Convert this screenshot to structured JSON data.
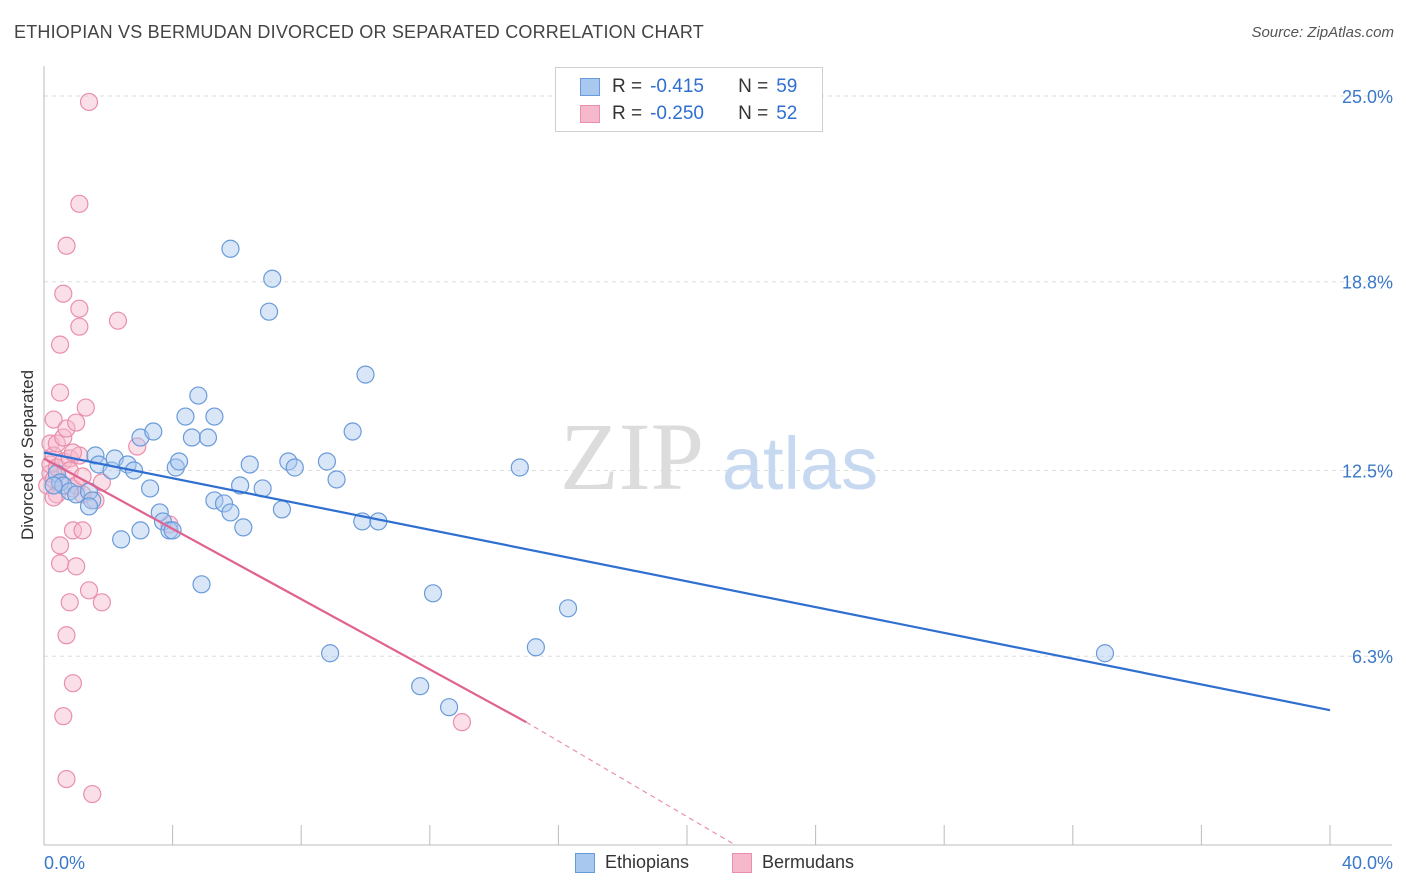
{
  "title": "ETHIOPIAN VS BERMUDAN DIVORCED OR SEPARATED CORRELATION CHART",
  "source": "Source: ZipAtlas.com",
  "watermark": {
    "zip": "ZIP",
    "atlas": "atlas"
  },
  "legend_top": [
    {
      "r_label": "R =",
      "r_value": "-0.415",
      "n_label": "N =",
      "n_value": "59"
    },
    {
      "r_label": "R =",
      "r_value": "-0.250",
      "n_label": "N =",
      "n_value": "52"
    }
  ],
  "legend_bottom": [
    {
      "label": "Ethiopians"
    },
    {
      "label": "Bermudans"
    }
  ],
  "colors": {
    "ethiopian_fill": "#a9c8f0",
    "ethiopian_stroke": "#6a9bd9",
    "ethiopian_line": "#2f6fd0",
    "bermudan_fill": "#f6b9cc",
    "bermudan_stroke": "#e98fad",
    "bermudan_line": "#e0628f",
    "axis_text": "#3a78c9",
    "grid": "#dddddd"
  },
  "chart_data": {
    "type": "scatter",
    "title": "ETHIOPIAN VS BERMUDAN DIVORCED OR SEPARATED CORRELATION CHART",
    "xlabel": "",
    "ylabel": "Divorced or Separated",
    "xlim": [
      0,
      40
    ],
    "ylim": [
      0,
      25.8
    ],
    "x_tick_labels": [
      "0.0%",
      "40.0%"
    ],
    "y_ticks": [
      6.3,
      12.5,
      18.8,
      25.0
    ],
    "y_tick_labels": [
      "6.3%",
      "12.5%",
      "18.8%",
      "25.0%"
    ],
    "grid": true,
    "legend_position": "top-center",
    "series": [
      {
        "name": "Ethiopians",
        "points": [
          [
            0.4,
            12.4
          ],
          [
            0.5,
            12.1
          ],
          [
            0.6,
            12.0
          ],
          [
            0.3,
            12.0
          ],
          [
            0.8,
            11.8
          ],
          [
            1.0,
            11.7
          ],
          [
            1.4,
            11.8
          ],
          [
            1.5,
            11.5
          ],
          [
            1.6,
            13.0
          ],
          [
            1.7,
            12.7
          ],
          [
            2.1,
            12.5
          ],
          [
            2.2,
            12.9
          ],
          [
            2.6,
            12.7
          ],
          [
            2.8,
            12.5
          ],
          [
            3.0,
            13.6
          ],
          [
            3.4,
            13.8
          ],
          [
            3.3,
            11.9
          ],
          [
            3.6,
            11.1
          ],
          [
            3.7,
            10.8
          ],
          [
            3.9,
            10.5
          ],
          [
            4.0,
            10.5
          ],
          [
            4.1,
            12.6
          ],
          [
            4.2,
            12.8
          ],
          [
            4.4,
            14.3
          ],
          [
            4.6,
            13.6
          ],
          [
            4.8,
            15.0
          ],
          [
            5.1,
            13.6
          ],
          [
            5.3,
            14.3
          ],
          [
            5.3,
            11.5
          ],
          [
            5.6,
            11.4
          ],
          [
            5.8,
            11.1
          ],
          [
            5.8,
            19.9
          ],
          [
            6.1,
            12.0
          ],
          [
            6.2,
            10.6
          ],
          [
            6.4,
            12.7
          ],
          [
            6.8,
            11.9
          ],
          [
            7.0,
            17.8
          ],
          [
            7.1,
            18.9
          ],
          [
            7.4,
            11.2
          ],
          [
            7.6,
            12.8
          ],
          [
            7.8,
            12.6
          ],
          [
            8.8,
            12.8
          ],
          [
            8.9,
            6.4
          ],
          [
            9.1,
            12.2
          ],
          [
            9.6,
            13.8
          ],
          [
            9.9,
            10.8
          ],
          [
            10.0,
            15.7
          ],
          [
            10.4,
            10.8
          ],
          [
            11.7,
            5.3
          ],
          [
            12.1,
            8.4
          ],
          [
            12.6,
            4.6
          ],
          [
            14.8,
            12.6
          ],
          [
            15.3,
            6.6
          ],
          [
            16.3,
            7.9
          ],
          [
            33.0,
            6.4
          ],
          [
            2.4,
            10.2
          ],
          [
            3.0,
            10.5
          ],
          [
            4.9,
            8.7
          ],
          [
            1.4,
            11.3
          ]
        ],
        "trend": {
          "x0": 0,
          "y0": 13.1,
          "x1": 40,
          "y1": 4.5
        }
      },
      {
        "name": "Bermudans",
        "points": [
          [
            0.1,
            12.0
          ],
          [
            0.2,
            12.4
          ],
          [
            0.2,
            12.7
          ],
          [
            0.2,
            13.4
          ],
          [
            0.3,
            12.2
          ],
          [
            0.3,
            13.0
          ],
          [
            0.3,
            14.2
          ],
          [
            0.4,
            11.7
          ],
          [
            0.4,
            12.6
          ],
          [
            0.4,
            13.4
          ],
          [
            0.5,
            10.0
          ],
          [
            0.5,
            15.1
          ],
          [
            0.5,
            16.7
          ],
          [
            0.5,
            9.4
          ],
          [
            0.6,
            12.8
          ],
          [
            0.6,
            13.6
          ],
          [
            0.6,
            18.4
          ],
          [
            0.6,
            4.3
          ],
          [
            0.7,
            7.0
          ],
          [
            0.7,
            13.9
          ],
          [
            0.8,
            12.9
          ],
          [
            0.8,
            12.5
          ],
          [
            0.8,
            8.1
          ],
          [
            0.9,
            5.4
          ],
          [
            0.9,
            11.9
          ],
          [
            0.9,
            10.5
          ],
          [
            0.7,
            2.2
          ],
          [
            0.7,
            20.0
          ],
          [
            1.0,
            14.1
          ],
          [
            1.0,
            9.3
          ],
          [
            1.0,
            12.0
          ],
          [
            1.1,
            17.3
          ],
          [
            1.1,
            13.0
          ],
          [
            1.1,
            17.9
          ],
          [
            1.1,
            21.4
          ],
          [
            1.2,
            12.3
          ],
          [
            1.2,
            11.7
          ],
          [
            1.2,
            10.5
          ],
          [
            1.3,
            14.6
          ],
          [
            1.4,
            8.5
          ],
          [
            1.4,
            24.8
          ],
          [
            1.5,
            1.7
          ],
          [
            1.6,
            11.5
          ],
          [
            1.8,
            8.1
          ],
          [
            1.8,
            12.1
          ],
          [
            2.3,
            17.5
          ],
          [
            2.9,
            13.3
          ],
          [
            3.9,
            10.7
          ],
          [
            13.0,
            4.1
          ],
          [
            0.3,
            11.6
          ],
          [
            0.5,
            12.1
          ],
          [
            0.9,
            13.1
          ]
        ],
        "trend": {
          "x0": 0,
          "y0": 12.9,
          "x1": 15.0,
          "y1": 4.1
        },
        "trend_dashed": {
          "x0": 15.0,
          "y0": 4.1,
          "x1": 21.5,
          "y1": 0
        }
      }
    ]
  }
}
